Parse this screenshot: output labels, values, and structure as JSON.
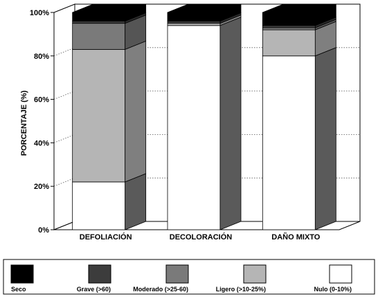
{
  "chart_data": {
    "type": "bar",
    "stacked": true,
    "three_d": true,
    "categories": [
      "DEFOLIACIÓN",
      "DECOLORACIÓN",
      "DAÑO MIXTO"
    ],
    "ylabel": "PORCENTAJE (%)",
    "xlabel": "",
    "title": "",
    "ylim": [
      0,
      100
    ],
    "yticks": [
      "0%",
      "20%",
      "40%",
      "60%",
      "80%",
      "100%"
    ],
    "grid": true,
    "legend_position": "bottom",
    "series": [
      {
        "name": "Nulo (0-10%)",
        "values": [
          22,
          94,
          80
        ],
        "color": "#ffffff"
      },
      {
        "name": "Ligero (>10-25%)",
        "values": [
          61,
          1,
          12
        ],
        "color": "#b5b5b5"
      },
      {
        "name": "Moderado (>25-60)",
        "values": [
          12,
          0,
          1
        ],
        "color": "#7a7a7a"
      },
      {
        "name": "Grave (>60)",
        "values": [
          1,
          1,
          1
        ],
        "color": "#3c3c3c"
      },
      {
        "name": "Seco",
        "values": [
          4,
          4,
          6
        ],
        "color": "#000000"
      }
    ]
  }
}
